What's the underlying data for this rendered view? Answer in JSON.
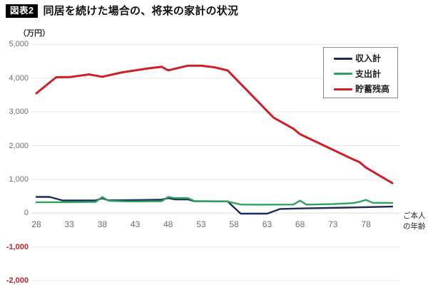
{
  "page": {
    "badge": "図表2",
    "title": "同居を続けた場合の、将来の家計の状況"
  },
  "chart_data": {
    "type": "line",
    "title": "同居を続けた場合の、将来の家計の状況",
    "y_unit_label": "（万円）",
    "x_axis_title_lines": [
      "ご本人",
      "の年齢"
    ],
    "x_ticks": [
      28,
      33,
      38,
      43,
      48,
      53,
      58,
      63,
      68,
      73,
      78
    ],
    "y_ticks": [
      {
        "label": "5,000",
        "value": 5000,
        "negative": false
      },
      {
        "label": "4,000",
        "value": 4000,
        "negative": false
      },
      {
        "label": "3,000",
        "value": 3000,
        "negative": false
      },
      {
        "label": "2,000",
        "value": 2000,
        "negative": false
      },
      {
        "label": "1,000",
        "value": 1000,
        "negative": false
      },
      {
        "label": "0",
        "value": 0,
        "negative": false
      },
      {
        "label": "-1,000",
        "value": -1000,
        "negative": true
      },
      {
        "label": "-2,000",
        "value": -2000,
        "negative": true
      }
    ],
    "xlim": [
      28,
      83
    ],
    "ylim": [
      -2000,
      5000
    ],
    "grid": true,
    "legend_position": "top-right",
    "grid_color": "#e9e7e7",
    "negative_tick_color": "#c0272d",
    "series": [
      {
        "name": "収入計",
        "color": "#1c2a5e",
        "points": [
          [
            28,
            480
          ],
          [
            30,
            480
          ],
          [
            32,
            375
          ],
          [
            37,
            378
          ],
          [
            38,
            438
          ],
          [
            39,
            380
          ],
          [
            44,
            390
          ],
          [
            47,
            400
          ],
          [
            48,
            445
          ],
          [
            49,
            408
          ],
          [
            51,
            408
          ],
          [
            52,
            352
          ],
          [
            57,
            350
          ],
          [
            59,
            -15
          ],
          [
            63,
            -15
          ],
          [
            65,
            125
          ],
          [
            68,
            140
          ],
          [
            75,
            165
          ],
          [
            82,
            195
          ]
        ]
      },
      {
        "name": "支出計",
        "color": "#2ea35f",
        "points": [
          [
            28,
            320
          ],
          [
            33,
            328
          ],
          [
            37,
            334
          ],
          [
            38,
            478
          ],
          [
            39,
            365
          ],
          [
            42,
            345
          ],
          [
            47,
            352
          ],
          [
            48,
            482
          ],
          [
            49,
            445
          ],
          [
            51,
            445
          ],
          [
            52,
            358
          ],
          [
            57,
            346
          ],
          [
            59,
            255
          ],
          [
            62,
            250
          ],
          [
            67,
            256
          ],
          [
            68,
            372
          ],
          [
            69,
            254
          ],
          [
            73,
            268
          ],
          [
            76,
            298
          ],
          [
            77,
            335
          ],
          [
            78,
            392
          ],
          [
            79,
            308
          ],
          [
            82,
            304
          ]
        ]
      },
      {
        "name": "貯蓄残高",
        "color": "#cf1f26",
        "points": [
          [
            28,
            3550
          ],
          [
            31,
            4025
          ],
          [
            33,
            4030
          ],
          [
            36,
            4110
          ],
          [
            38,
            4040
          ],
          [
            41,
            4170
          ],
          [
            45,
            4290
          ],
          [
            47,
            4335
          ],
          [
            48,
            4230
          ],
          [
            51,
            4370
          ],
          [
            53,
            4370
          ],
          [
            55,
            4320
          ],
          [
            57,
            4230
          ],
          [
            64,
            2830
          ],
          [
            65,
            2720
          ],
          [
            67,
            2500
          ],
          [
            68,
            2340
          ],
          [
            76,
            1600
          ],
          [
            77,
            1515
          ],
          [
            78,
            1350
          ],
          [
            82,
            890
          ]
        ]
      }
    ]
  }
}
